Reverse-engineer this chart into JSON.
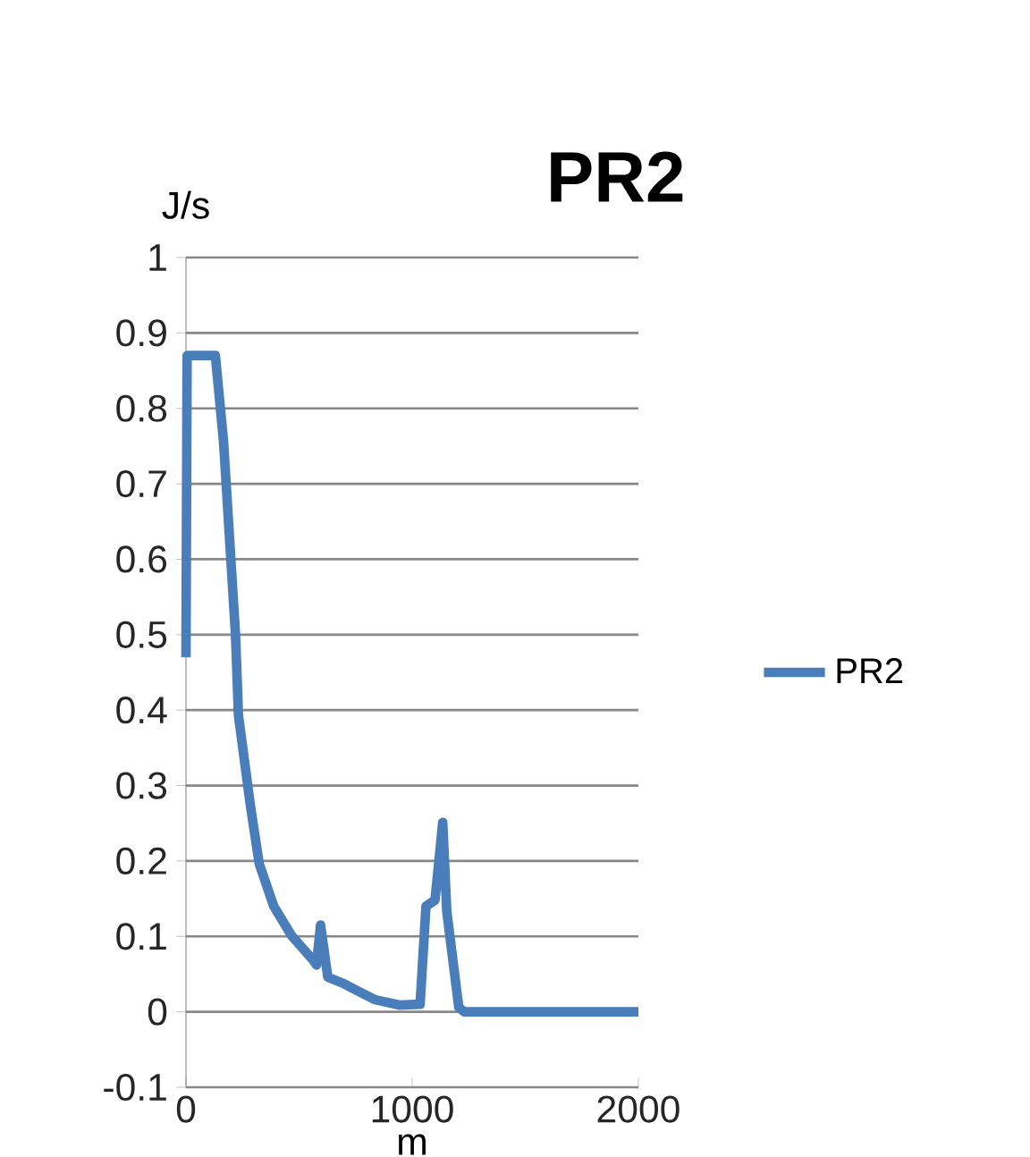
{
  "chart_data": {
    "type": "line",
    "title": "PR2",
    "xlabel": "m",
    "ylabel": "J/s",
    "series": [
      {
        "name": "PR2",
        "color": "#4a7ebb",
        "x": [
          0,
          5,
          10,
          130,
          166,
          219,
          232,
          284,
          324,
          388,
          467,
          561,
          577,
          595,
          627,
          693,
          732,
          837,
          943,
          1035,
          1061,
          1101,
          1135,
          1153,
          1206,
          1230,
          2000
        ],
        "values": [
          0.47,
          0.87,
          0.87,
          0.87,
          0.756,
          0.5,
          0.393,
          0.275,
          0.196,
          0.14,
          0.101,
          0.069,
          0.062,
          0.115,
          0.046,
          0.038,
          0.032,
          0.016,
          0.009,
          0.01,
          0.14,
          0.148,
          0.251,
          0.133,
          0.006,
          0,
          0
        ]
      }
    ],
    "xlim": [
      0,
      2000
    ],
    "xticks": [
      0,
      1000,
      2000
    ],
    "ylim": [
      -0.1,
      1
    ],
    "yticks": [
      -0.1,
      0,
      0.1,
      0.2,
      0.3,
      0.4,
      0.5,
      0.6,
      0.7,
      0.8,
      0.9,
      1
    ],
    "grid": "y",
    "legend": "right",
    "marker": "none",
    "line_style": "solid"
  }
}
